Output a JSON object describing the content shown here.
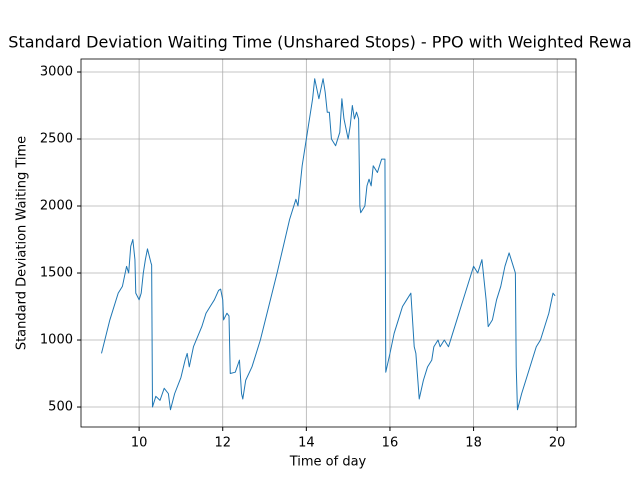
{
  "chart_data": {
    "type": "line",
    "title": "Standard Deviation Waiting Time (Unshared Stops) - PPO with Weighted Rewa",
    "x_label": "Time of day",
    "y_label": "Standard Deviation Waiting Time",
    "x": [
      9.1,
      9.3,
      9.5,
      9.6,
      9.7,
      9.75,
      9.8,
      9.85,
      9.9,
      9.92,
      10.0,
      10.05,
      10.1,
      10.15,
      10.2,
      10.28,
      10.3,
      10.32,
      10.4,
      10.5,
      10.6,
      10.7,
      10.75,
      10.85,
      11.0,
      11.1,
      11.15,
      11.2,
      11.3,
      11.5,
      11.6,
      11.7,
      11.8,
      11.9,
      11.95,
      12.0,
      12.02,
      12.1,
      12.15,
      12.18,
      12.3,
      12.4,
      12.45,
      12.48,
      12.55,
      12.7,
      12.9,
      13.1,
      13.3,
      13.45,
      13.6,
      13.75,
      13.8,
      13.9,
      14.0,
      14.05,
      14.15,
      14.2,
      14.3,
      14.4,
      14.45,
      14.5,
      14.55,
      14.6,
      14.7,
      14.8,
      14.85,
      14.9,
      15.0,
      15.05,
      15.1,
      15.15,
      15.2,
      15.25,
      15.28,
      15.3,
      15.4,
      15.45,
      15.5,
      15.55,
      15.6,
      15.7,
      15.8,
      15.88,
      15.9,
      16.0,
      16.1,
      16.2,
      16.3,
      16.4,
      16.5,
      16.58,
      16.62,
      16.7,
      16.8,
      16.9,
      17.0,
      17.05,
      17.15,
      17.2,
      17.3,
      17.4,
      17.5,
      17.6,
      17.7,
      17.8,
      17.9,
      18.0,
      18.1,
      18.2,
      18.3,
      18.35,
      18.45,
      18.55,
      18.65,
      18.75,
      18.85,
      18.95,
      19.0,
      19.02,
      19.05,
      19.15,
      19.25,
      19.4,
      19.5,
      19.6,
      19.7,
      19.8,
      19.9,
      19.95
    ],
    "series": [
      {
        "color": "#1f77b4",
        "values": [
          900,
          1150,
          1350,
          1400,
          1550,
          1500,
          1700,
          1750,
          1600,
          1350,
          1300,
          1350,
          1500,
          1600,
          1680,
          1580,
          1560,
          500,
          580,
          550,
          640,
          600,
          480,
          600,
          720,
          850,
          900,
          800,
          950,
          1100,
          1200,
          1250,
          1300,
          1370,
          1380,
          1300,
          1150,
          1200,
          1180,
          750,
          760,
          850,
          600,
          560,
          700,
          800,
          1000,
          1250,
          1500,
          1700,
          1900,
          2050,
          2000,
          2300,
          2500,
          2600,
          2800,
          2950,
          2800,
          2950,
          2850,
          2700,
          2700,
          2500,
          2450,
          2550,
          2800,
          2650,
          2500,
          2600,
          2750,
          2650,
          2700,
          2650,
          2000,
          1950,
          2000,
          2150,
          2200,
          2150,
          2300,
          2250,
          2350,
          2350,
          760,
          900,
          1050,
          1150,
          1250,
          1300,
          1350,
          950,
          900,
          560,
          700,
          800,
          850,
          950,
          1000,
          950,
          1000,
          950,
          1050,
          1150,
          1250,
          1350,
          1450,
          1550,
          1500,
          1600,
          1300,
          1100,
          1150,
          1300,
          1400,
          1550,
          1650,
          1550,
          1500,
          800,
          480,
          600,
          700,
          850,
          950,
          1000,
          1100,
          1200,
          1350,
          1330
        ]
      }
    ],
    "xlim": [
      8.61,
      20.45
    ],
    "ylim": [
      351,
      3097
    ],
    "xticks": [
      10,
      12,
      14,
      16,
      18,
      20
    ],
    "yticks": [
      500,
      1000,
      1500,
      2000,
      2500,
      3000
    ],
    "grid": true
  }
}
